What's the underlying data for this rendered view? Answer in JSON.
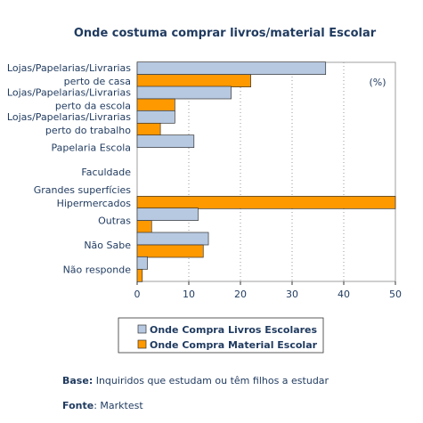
{
  "chart_data": {
    "type": "bar",
    "orientation": "horizontal",
    "title": "Onde costuma comprar livros/material Escolar",
    "unit_label": "(%)",
    "categories": [
      [
        "Lojas/Papelarias/Livrarias",
        "perto de casa"
      ],
      [
        "Lojas/Papelarias/Livrarias",
        "perto da escola"
      ],
      [
        "Lojas/Papelarias/Livrarias",
        "perto do trabalho"
      ],
      [
        "Papelaria Escola"
      ],
      [
        "Faculdade"
      ],
      [
        "Grandes superfícies",
        "Hipermercados"
      ],
      [
        "Outras"
      ],
      [
        "Não Sabe"
      ],
      [
        "Não responde"
      ]
    ],
    "series": [
      {
        "name": "Onde Compra Livros Escolares",
        "color": "#b7c9e1",
        "values": [
          36.5,
          18.2,
          7.3,
          11,
          0,
          0,
          11.8,
          13.8,
          2
        ]
      },
      {
        "name": "Onde Compra Material Escolar",
        "color": "#ff9900",
        "values": [
          22,
          7.3,
          4.5,
          0,
          0,
          50,
          2.8,
          12.8,
          1
        ]
      }
    ],
    "xlim": [
      0,
      50
    ],
    "xticks": [
      0,
      10,
      20,
      30,
      40,
      50
    ],
    "grid": "vertical-dotted",
    "legend": "bottom"
  },
  "notes": {
    "base_label": "Base:",
    "base_text": " Inquiridos que estudam ou têm filhos a estudar",
    "fonte_label": "Fonte",
    "fonte_text": ": Marktest"
  }
}
